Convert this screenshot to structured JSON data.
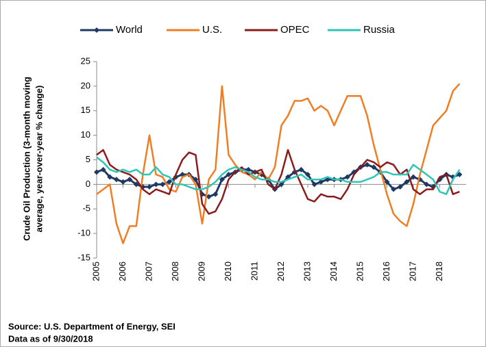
{
  "chart_data": {
    "type": "line",
    "ylabel": [
      "Crude Oil Production (3-month moving",
      "average, year-over-year % change)"
    ],
    "source": [
      "Source: U.S. Department of Energy, SEI",
      "Data as of 9/30/2018"
    ],
    "x": [
      2005,
      2005.25,
      2005.5,
      2005.75,
      2006,
      2006.25,
      2006.5,
      2006.75,
      2007,
      2007.25,
      2007.5,
      2007.75,
      2008,
      2008.25,
      2008.5,
      2008.75,
      2009,
      2009.25,
      2009.5,
      2009.75,
      2010,
      2010.25,
      2010.5,
      2010.75,
      2011,
      2011.25,
      2011.5,
      2011.75,
      2012,
      2012.25,
      2012.5,
      2012.75,
      2013,
      2013.25,
      2013.5,
      2013.75,
      2014,
      2014.25,
      2014.5,
      2014.75,
      2015,
      2015.25,
      2015.5,
      2015.75,
      2016,
      2016.25,
      2016.5,
      2016.75,
      2017,
      2017.25,
      2017.5,
      2017.75,
      2018,
      2018.25,
      2018.5,
      2018.75
    ],
    "series": [
      {
        "name": "World",
        "color": "#1f3864",
        "marker": "diamond",
        "values": [
          2.5,
          3,
          1.5,
          1,
          0.5,
          1,
          0,
          -0.5,
          -0.5,
          0,
          0,
          0.5,
          1.5,
          2,
          2,
          1,
          -2,
          -2.5,
          -2,
          1,
          2,
          2.5,
          3,
          3,
          2.5,
          2,
          1,
          -1,
          0,
          1.5,
          2.5,
          3,
          2,
          0,
          0.5,
          1,
          1,
          1,
          1.5,
          2.5,
          3.5,
          4,
          3.5,
          2.5,
          0.5,
          -1,
          -0.5,
          0.5,
          1.5,
          1,
          0,
          -0.5,
          1,
          2,
          1.5,
          2
        ]
      },
      {
        "name": "U.S.",
        "color": "#f07d22",
        "values": [
          -2,
          -1,
          0,
          -8,
          -12,
          -8.5,
          -8.5,
          2,
          10,
          2,
          1.5,
          -1,
          -1.5,
          1.5,
          2,
          0,
          -8,
          1,
          3,
          20,
          6,
          4,
          2.5,
          2,
          1,
          2.5,
          1,
          3.5,
          12,
          14,
          17,
          17,
          17.5,
          15,
          16,
          15,
          12,
          15,
          18,
          18,
          18,
          14,
          8,
          3,
          -2,
          -6,
          -7.5,
          -8.5,
          -4,
          2,
          7,
          12,
          13.5,
          15,
          19,
          20.5
        ]
      },
      {
        "name": "OPEC",
        "color": "#8b1a1a",
        "values": [
          6,
          7,
          4,
          3,
          2.5,
          2,
          1,
          -1,
          -2,
          -1,
          -1.5,
          -2,
          2,
          5,
          6.5,
          6,
          -4,
          -6,
          -5.5,
          -3,
          1,
          2.5,
          3.5,
          2,
          2.5,
          3,
          0,
          -1,
          2,
          7,
          3,
          0,
          -3,
          -3.5,
          -2,
          -2.5,
          -2.5,
          -3,
          -1,
          2,
          3.5,
          5,
          4.5,
          3.5,
          4.5,
          4,
          2,
          3,
          -1,
          -2,
          -1,
          -1,
          1.5,
          2,
          -2,
          -1.5
        ]
      },
      {
        "name": "Russia",
        "color": "#2ec4b6",
        "values": [
          5.5,
          4.5,
          3,
          2.5,
          3,
          2.5,
          3,
          2,
          2,
          3.5,
          2,
          1.5,
          0,
          0,
          -0.5,
          -1,
          -1,
          -0.5,
          0.5,
          2,
          3,
          3.5,
          3,
          2.5,
          1.5,
          1,
          1,
          0.5,
          0.5,
          1,
          1.5,
          2,
          1,
          1,
          1,
          1.5,
          1,
          1,
          0.5,
          0.5,
          0.5,
          1,
          1.5,
          2.5,
          2.5,
          2,
          2,
          2,
          4,
          3,
          2,
          1,
          -1.5,
          -2,
          1,
          3
        ]
      }
    ],
    "xlim": [
      2005,
      2019
    ],
    "xticks": [
      2005,
      2006,
      2007,
      2008,
      2009,
      2010,
      2011,
      2012,
      2013,
      2014,
      2015,
      2016,
      2017,
      2018
    ],
    "ylim": [
      -15,
      25
    ],
    "yticks": [
      -15,
      -10,
      -5,
      0,
      5,
      10,
      15,
      20,
      25
    ],
    "legend": "top",
    "grid": false
  }
}
